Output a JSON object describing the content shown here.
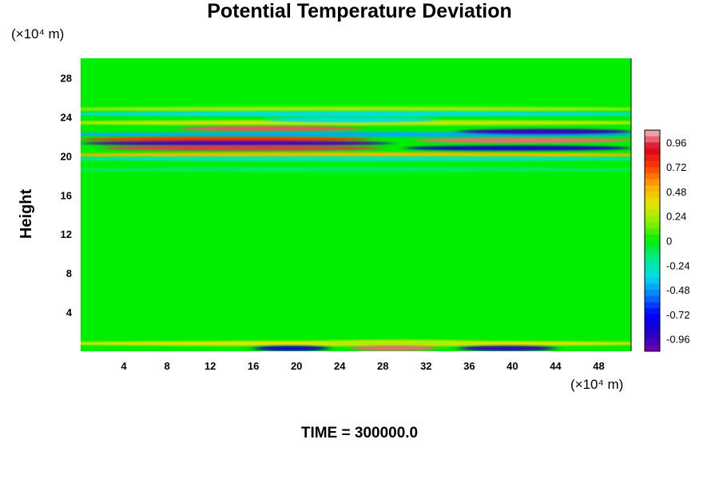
{
  "chart_data": {
    "type": "heatmap",
    "title": "Potential Temperature Deviation",
    "ylabel": "Height",
    "y_unit": "(×10⁴ m)",
    "x_unit": "(×10⁴ m)",
    "footer": "TIME = 300000.0",
    "xlim": [
      0,
      51
    ],
    "ylim": [
      0,
      30
    ],
    "x_ticks": [
      4,
      8,
      12,
      16,
      20,
      24,
      28,
      32,
      36,
      40,
      44,
      48
    ],
    "y_ticks": [
      4,
      8,
      12,
      16,
      20,
      24,
      28
    ],
    "colorbar": {
      "min": -1.08,
      "max": 1.08,
      "levels": 36,
      "tick_values": [
        0.96,
        0.72,
        0.48,
        0.24,
        0,
        -0.24,
        -0.48,
        -0.72,
        -0.96
      ],
      "tick_labels": [
        "0.96",
        "0.72",
        "0.48",
        "0.24",
        "0",
        "-0.24",
        "-0.48",
        "-0.72",
        "-0.96"
      ]
    },
    "background_value": 0,
    "features": [
      {
        "x": [
          0,
          51
        ],
        "y": 24.8,
        "value": 0.2
      },
      {
        "x": [
          0,
          51
        ],
        "y": 24.3,
        "value": -0.35
      },
      {
        "x": [
          0,
          51
        ],
        "y": 23.4,
        "value": 0.3
      },
      {
        "x": [
          17,
          33
        ],
        "y": 23.7,
        "value": -0.35
      },
      {
        "x": [
          9,
          26
        ],
        "y": 22.8,
        "value": 0.98
      },
      {
        "x": [
          0,
          51
        ],
        "y": 22.2,
        "value": -0.45
      },
      {
        "x": [
          0,
          27
        ],
        "y": 21.7,
        "value": 0.75
      },
      {
        "x": [
          35,
          51
        ],
        "y": 22.5,
        "value": -0.95
      },
      {
        "x": [
          0,
          29
        ],
        "y": 21.3,
        "value": -1.0
      },
      {
        "x": [
          31,
          51
        ],
        "y": 21.6,
        "value": 1.0
      },
      {
        "x": [
          2,
          28
        ],
        "y": 20.8,
        "value": 0.95
      },
      {
        "x": [
          30,
          51
        ],
        "y": 20.8,
        "value": -0.9
      },
      {
        "x": [
          0,
          51
        ],
        "y": 20.1,
        "value": 0.5
      },
      {
        "x": [
          0,
          51
        ],
        "y": 19.7,
        "value": -0.25
      },
      {
        "x": [
          0,
          51
        ],
        "y": 18.6,
        "value": -0.12
      },
      {
        "x": [
          0,
          51
        ],
        "y": 0.8,
        "value": 0.35
      },
      {
        "x": [
          22,
          37
        ],
        "y": 0.9,
        "value": 0.25
      },
      {
        "x": [
          16,
          23
        ],
        "y": 0.3,
        "value": -0.9
      },
      {
        "x": [
          25,
          33
        ],
        "y": 0.3,
        "value": 1.0
      },
      {
        "x": [
          35,
          44
        ],
        "y": 0.3,
        "value": -0.95
      }
    ]
  },
  "colors": {
    "background": "#ffffff",
    "zero": "#00ee00",
    "positive_max": "#f5c0c0",
    "negative_max": "#7700aa"
  }
}
